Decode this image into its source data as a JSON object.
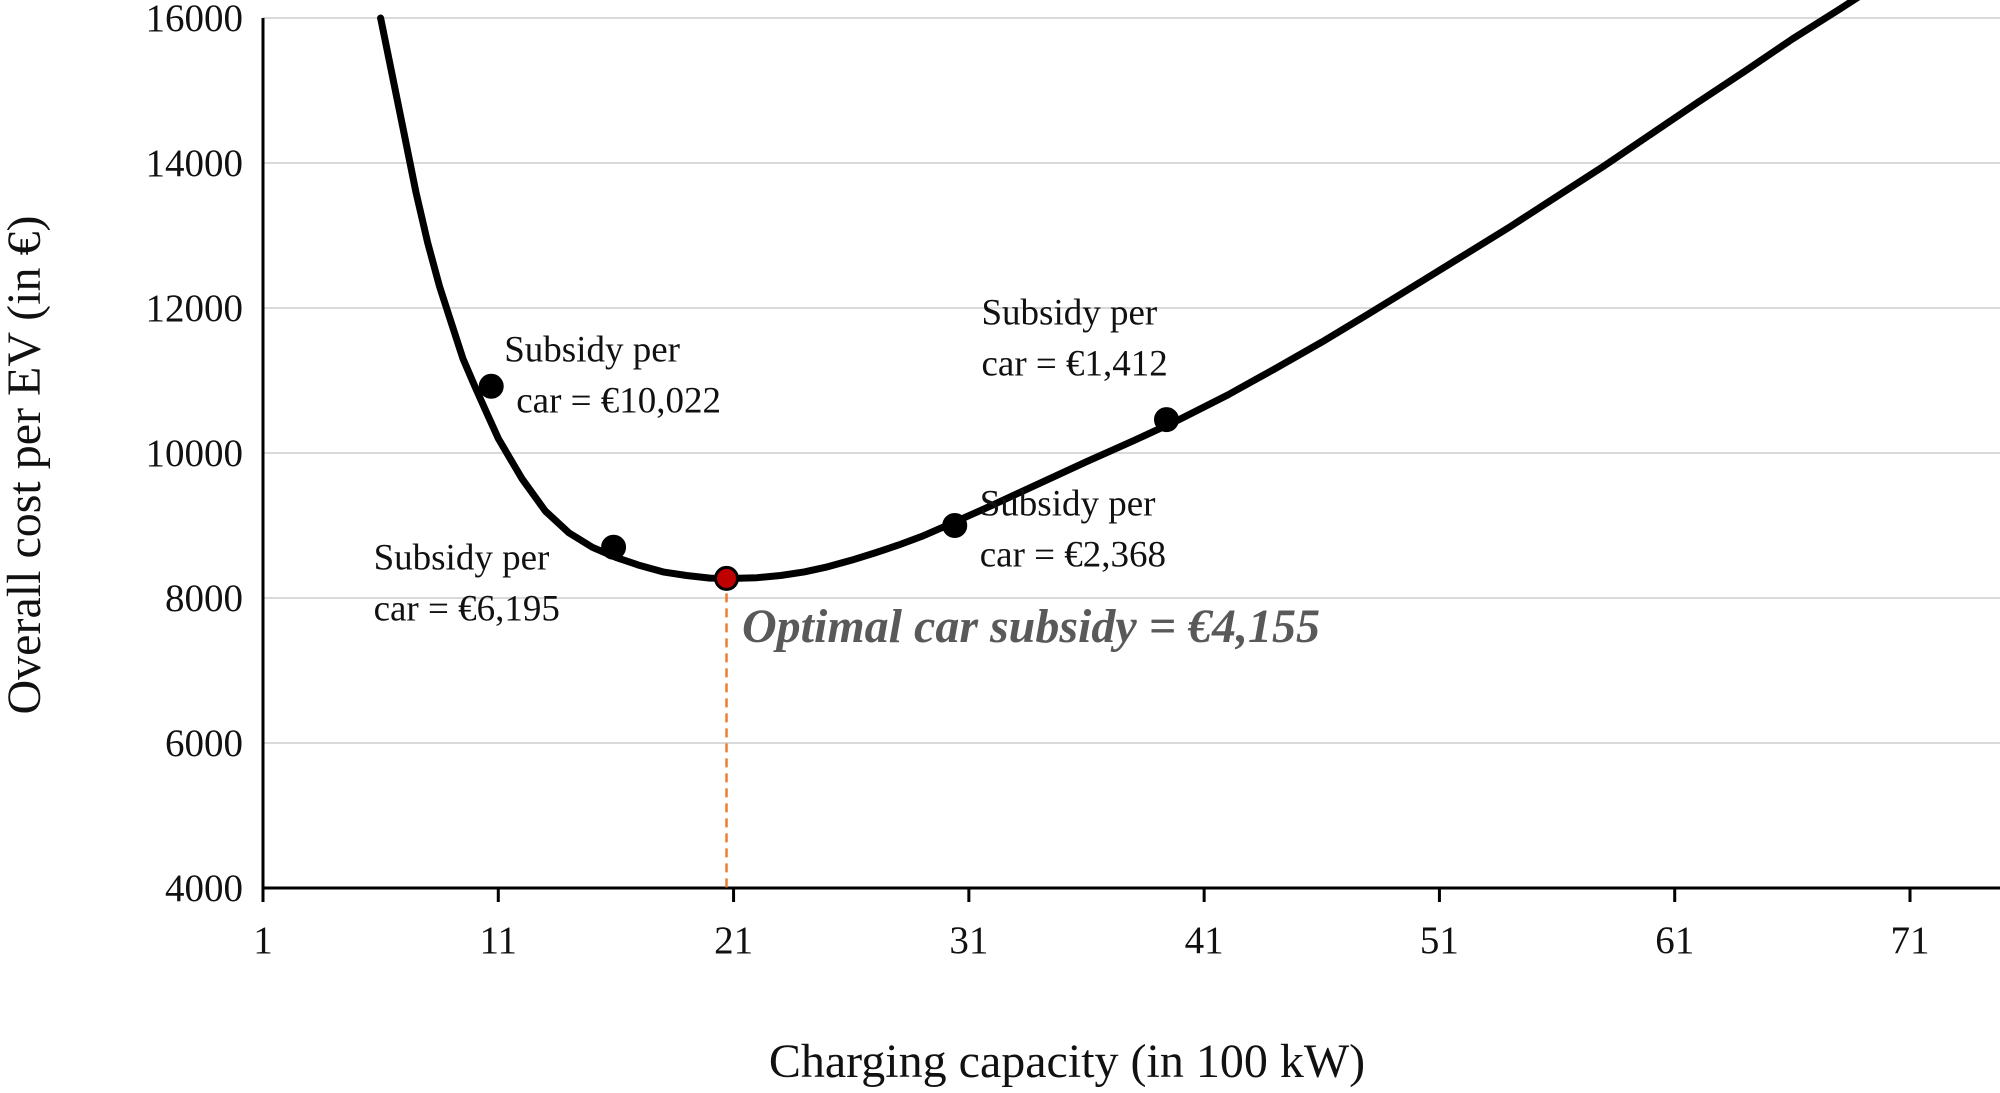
{
  "chart_data": {
    "type": "line",
    "xlabel": "Charging capacity (in 100 kW)",
    "ylabel": "Overall cost per EV (in €)",
    "xlim": [
      1,
      72
    ],
    "ylim": [
      4000,
      16000
    ],
    "x_ticks": [
      "1",
      "11",
      "21",
      "31",
      "41",
      "51",
      "61",
      "71"
    ],
    "y_ticks": [
      "4000",
      "6000",
      "8000",
      "10000",
      "12000",
      "14000",
      "16000"
    ],
    "grid": "horizontal",
    "line_color": "#000000",
    "grid_color": "#d9d9d9",
    "series": [
      {
        "x": [
          6.0,
          6.5,
          7.0,
          7.5,
          8.0,
          8.5,
          9.0,
          9.5,
          10.0,
          10.5,
          11.0,
          12.0,
          13.0,
          14.0,
          15.0,
          16.0,
          17.0,
          18.0,
          19.0,
          20.0,
          21.0,
          22.0,
          23.0,
          24.0,
          25.0,
          26.0,
          27.0,
          28.0,
          29.0,
          30.0,
          32.0,
          34.0,
          36.0,
          38.0,
          40.0,
          42.0,
          44.0,
          46.0,
          48.0,
          50.0,
          52.0,
          54.0,
          56.0,
          58.0,
          60.0,
          62.0,
          64.0,
          66.0,
          68.0,
          69.0
        ],
        "y": [
          16000,
          15200,
          14400,
          13600,
          12900,
          12300,
          11800,
          11300,
          10920,
          10560,
          10200,
          9650,
          9200,
          8900,
          8700,
          8560,
          8450,
          8360,
          8310,
          8275,
          8270,
          8280,
          8310,
          8360,
          8430,
          8520,
          8620,
          8730,
          8850,
          8990,
          9280,
          9580,
          9880,
          10170,
          10470,
          10800,
          11160,
          11530,
          11920,
          12320,
          12720,
          13120,
          13540,
          13960,
          14400,
          14840,
          15270,
          15710,
          16120,
          16330
        ]
      }
    ],
    "points": [
      {
        "x": 10.7,
        "y": 10920,
        "label_line1": "Subsidy per",
        "label_line2": "car = €10,022",
        "color": "#000000"
      },
      {
        "x": 15.9,
        "y": 8700,
        "label_line1": "Subsidy per",
        "label_line2": "car = €6,195",
        "color": "#000000"
      },
      {
        "x": 20.7,
        "y": 8270,
        "label_line1": "",
        "label_line2": "",
        "color": "#c00000"
      },
      {
        "x": 30.4,
        "y": 9000,
        "label_line1": "Subsidy per",
        "label_line2": "car = €2,368",
        "color": "#000000"
      },
      {
        "x": 39.4,
        "y": 10460,
        "label_line1": "Subsidy per",
        "label_line2": "car = €1,412",
        "color": "#000000"
      }
    ],
    "optimal": {
      "x": 20.7,
      "y": 8270,
      "label": "Optimal car subsidy = €4,155",
      "line_color": "#ed7d31"
    }
  }
}
